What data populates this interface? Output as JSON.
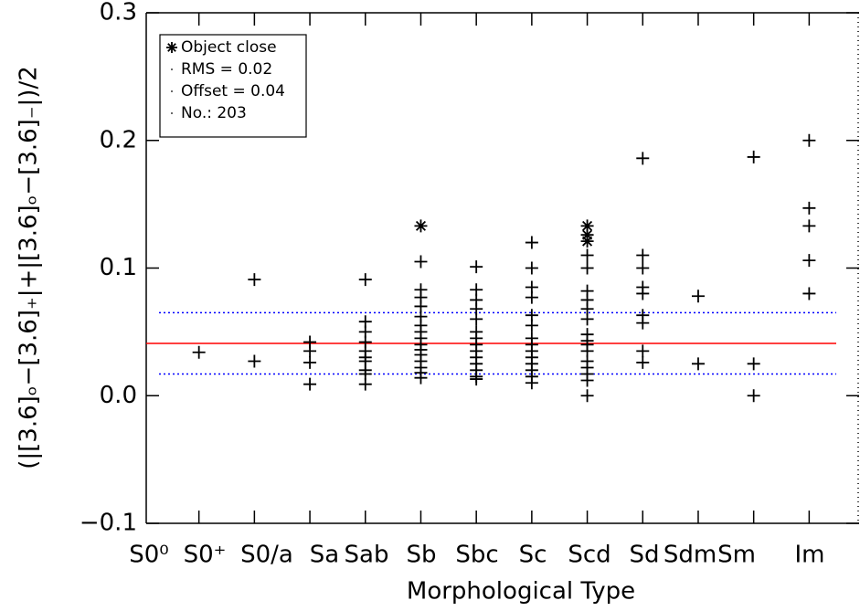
{
  "chart_data": {
    "type": "scatter",
    "ylabel": "(|[3.6]ₒ−[3.6]₊|+|[3.6]ₒ−[3.6]₋|)/2",
    "xlabel": "Morphological Type",
    "categories": [
      "S0⁰",
      "S0⁺",
      "S0/a",
      "Sa",
      "Sab",
      "Sb",
      "Sbc",
      "Sc",
      "Scd",
      "Sd",
      "Sdm",
      "Sm",
      "Im"
    ],
    "xlim": [
      -0.95,
      11.9
    ],
    "xticks": [
      0,
      1,
      2,
      3,
      4,
      5,
      6,
      7,
      8,
      9,
      10,
      11
    ],
    "ylim": [
      -0.1,
      0.3
    ],
    "yticks": [
      {
        "value": -0.1,
        "label": "−0.1"
      },
      {
        "value": 0,
        "label": "0.0"
      },
      0.1,
      0.2,
      0.3
    ],
    "series": [
      {
        "marker": "plus",
        "color": "#000000",
        "x": [
          0,
          1,
          1,
          2,
          2,
          2,
          2,
          3,
          3,
          3,
          3,
          3,
          3,
          3,
          3,
          3,
          3,
          4,
          4,
          4,
          4,
          4,
          4,
          4,
          4,
          4,
          4,
          4,
          4,
          4,
          4,
          4,
          5,
          5,
          5,
          5,
          5,
          5,
          5,
          5,
          5,
          5,
          5,
          5,
          5,
          5,
          6,
          6,
          6,
          6,
          6,
          6,
          6,
          6,
          6,
          6,
          6,
          6,
          6,
          6,
          7,
          7,
          7,
          7,
          7,
          7,
          7,
          7,
          7,
          7,
          7,
          7,
          7,
          7,
          7,
          8,
          8,
          8,
          8,
          8,
          8,
          8,
          8,
          8,
          9,
          9,
          10,
          10,
          10,
          11,
          11,
          11,
          11,
          11
        ],
        "values": [
          0.034,
          0.091,
          0.027,
          0.042,
          0.035,
          0.026,
          0.009,
          0.091,
          0.058,
          0.05,
          0.042,
          0.035,
          0.03,
          0.027,
          0.02,
          0.017,
          0.009,
          0.105,
          0.083,
          0.077,
          0.07,
          0.062,
          0.055,
          0.05,
          0.045,
          0.04,
          0.036,
          0.032,
          0.027,
          0.022,
          0.018,
          0.014,
          0.101,
          0.083,
          0.075,
          0.068,
          0.06,
          0.05,
          0.045,
          0.04,
          0.035,
          0.03,
          0.025,
          0.02,
          0.015,
          0.013,
          0.12,
          0.1,
          0.085,
          0.077,
          0.063,
          0.055,
          0.045,
          0.04,
          0.035,
          0.03,
          0.025,
          0.02,
          0.015,
          0.01,
          0.11,
          0.1,
          0.082,
          0.075,
          0.068,
          0.06,
          0.048,
          0.043,
          0.04,
          0.035,
          0.027,
          0.022,
          0.017,
          0.012,
          0,
          0.186,
          0.11,
          0.1,
          0.085,
          0.08,
          0.063,
          0.057,
          0.035,
          0.026,
          0.078,
          0.025,
          0.187,
          0.025,
          0,
          0.2,
          0.147,
          0.133,
          0.106,
          0.08
        ]
      },
      {
        "name": "Object close",
        "marker": "star",
        "color": "#000000",
        "x": [
          4,
          7,
          7,
          7
        ],
        "values": [
          0.133,
          0.133,
          0.126,
          0.121
        ]
      }
    ],
    "hlines": [
      {
        "value": 0.041,
        "color": "#ff0000",
        "style": "solid"
      },
      {
        "value": 0.065,
        "color": "#0000ff",
        "style": "dotted"
      },
      {
        "value": 0.017,
        "color": "#0000ff",
        "style": "dotted"
      }
    ],
    "legend_notes": [
      "RMS = 0.02",
      "Offset = 0.04",
      "No.: 203"
    ],
    "legend": "upper left"
  }
}
